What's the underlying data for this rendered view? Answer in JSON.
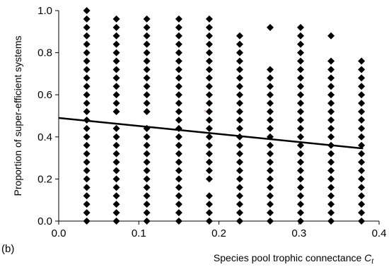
{
  "chart_data": {
    "type": "scatter",
    "panel_label": "(b)",
    "xlabel": "Species pool trophic connectance ",
    "xlabel_symbol": "C",
    "xlabel_subscript": "t",
    "ylabel": "Proportion of super-efficient systems",
    "xlim": [
      0.0,
      0.4
    ],
    "ylim": [
      0.0,
      1.0
    ],
    "x_ticks": [
      "0.0",
      "0.1",
      "0.2",
      "0.3",
      "0.4"
    ],
    "y_ticks": [
      "0.0",
      "0.2",
      "0.4",
      "0.6",
      "0.8",
      "1.0"
    ],
    "grid": false,
    "legend": "none",
    "colors": {
      "points": "#000000",
      "trend_line": "#000000",
      "axis": "#000000"
    },
    "series": [
      {
        "x": 0.035,
        "values": [
          0.0,
          0.04,
          0.08,
          0.12,
          0.16,
          0.2,
          0.24,
          0.28,
          0.32,
          0.36,
          0.4,
          0.44,
          0.48,
          0.52,
          0.56,
          0.6,
          0.64,
          0.68,
          0.72,
          0.76,
          0.8,
          0.84,
          0.88,
          0.92,
          0.96,
          1.0
        ]
      },
      {
        "x": 0.072,
        "values": [
          0.0,
          0.04,
          0.08,
          0.12,
          0.16,
          0.2,
          0.24,
          0.28,
          0.32,
          0.36,
          0.4,
          0.44,
          0.52,
          0.56,
          0.6,
          0.64,
          0.68,
          0.72,
          0.76,
          0.8,
          0.84,
          0.88,
          0.92,
          0.96
        ]
      },
      {
        "x": 0.11,
        "values": [
          0.0,
          0.04,
          0.08,
          0.12,
          0.16,
          0.2,
          0.24,
          0.28,
          0.32,
          0.36,
          0.4,
          0.44,
          0.52,
          0.56,
          0.6,
          0.64,
          0.68,
          0.72,
          0.76,
          0.8,
          0.84,
          0.88,
          0.92,
          0.96
        ]
      },
      {
        "x": 0.15,
        "values": [
          0.0,
          0.04,
          0.08,
          0.12,
          0.16,
          0.2,
          0.24,
          0.28,
          0.32,
          0.36,
          0.4,
          0.44,
          0.48,
          0.52,
          0.56,
          0.6,
          0.64,
          0.68,
          0.72,
          0.76,
          0.8,
          0.84,
          0.88,
          0.92,
          0.96
        ]
      },
      {
        "x": 0.188,
        "values": [
          0.0,
          0.04,
          0.08,
          0.12,
          0.2,
          0.24,
          0.28,
          0.32,
          0.36,
          0.4,
          0.44,
          0.48,
          0.52,
          0.56,
          0.6,
          0.64,
          0.68,
          0.72,
          0.76,
          0.8,
          0.84,
          0.88,
          0.92,
          0.96
        ]
      },
      {
        "x": 0.226,
        "values": [
          0.0,
          0.04,
          0.08,
          0.12,
          0.16,
          0.2,
          0.24,
          0.28,
          0.32,
          0.36,
          0.4,
          0.44,
          0.48,
          0.52,
          0.56,
          0.6,
          0.64,
          0.68,
          0.72,
          0.76,
          0.8,
          0.84,
          0.88
        ]
      },
      {
        "x": 0.264,
        "values": [
          0.0,
          0.04,
          0.08,
          0.12,
          0.16,
          0.2,
          0.24,
          0.28,
          0.32,
          0.36,
          0.4,
          0.44,
          0.48,
          0.52,
          0.56,
          0.6,
          0.64,
          0.68,
          0.72,
          0.92
        ]
      },
      {
        "x": 0.302,
        "values": [
          0.0,
          0.04,
          0.08,
          0.12,
          0.16,
          0.2,
          0.24,
          0.28,
          0.32,
          0.36,
          0.4,
          0.44,
          0.48,
          0.52,
          0.56,
          0.6,
          0.64,
          0.68,
          0.72,
          0.76,
          0.8,
          0.84,
          0.88,
          0.92
        ]
      },
      {
        "x": 0.34,
        "values": [
          0.0,
          0.04,
          0.08,
          0.12,
          0.16,
          0.2,
          0.24,
          0.28,
          0.32,
          0.36,
          0.4,
          0.44,
          0.48,
          0.52,
          0.56,
          0.6,
          0.64,
          0.68,
          0.72,
          0.76,
          0.88
        ]
      },
      {
        "x": 0.378,
        "values": [
          0.0,
          0.04,
          0.08,
          0.12,
          0.16,
          0.2,
          0.24,
          0.28,
          0.32,
          0.36,
          0.4,
          0.44,
          0.48,
          0.52,
          0.56,
          0.6,
          0.64,
          0.68,
          0.72,
          0.76
        ]
      }
    ],
    "trend_line": {
      "x": [
        0.0,
        0.38
      ],
      "y": [
        0.49,
        0.345
      ]
    }
  }
}
